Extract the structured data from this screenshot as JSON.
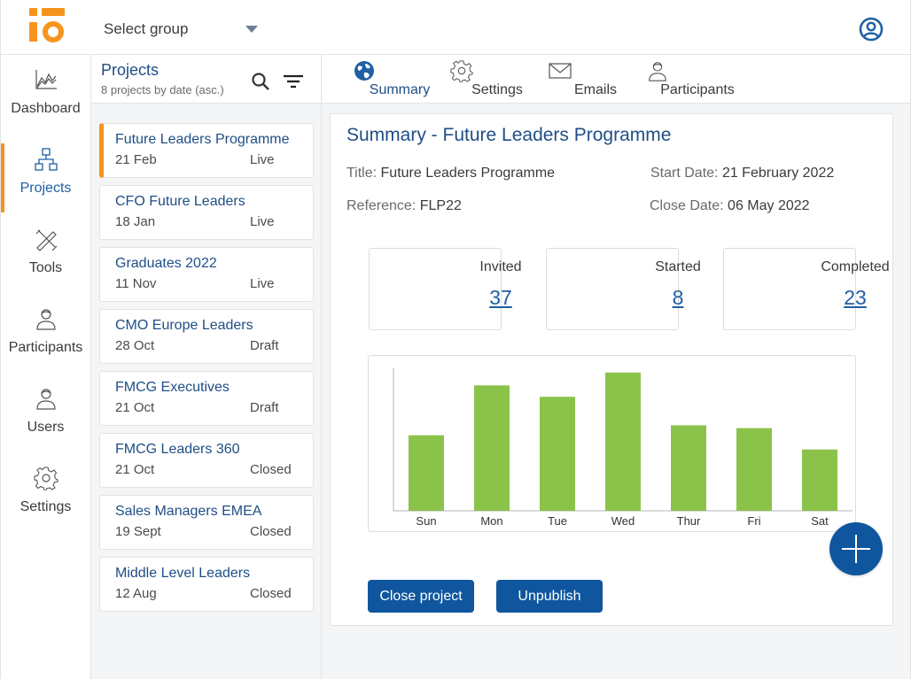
{
  "header": {
    "group_select_label": "Select group",
    "icons": [
      "logo",
      "chevron-down-icon",
      "account-icon"
    ]
  },
  "nav": {
    "items": [
      {
        "label": "Dashboard",
        "icon": "chart-icon"
      },
      {
        "label": "Projects",
        "icon": "hierarchy-icon",
        "active": true
      },
      {
        "label": "Tools",
        "icon": "tools-icon"
      },
      {
        "label": "Participants",
        "icon": "person-icon"
      },
      {
        "label": "Users",
        "icon": "person-icon"
      },
      {
        "label": "Settings",
        "icon": "gear-icon"
      }
    ]
  },
  "projects": {
    "title": "Projects",
    "subtitle": "8 projects by date (asc.)",
    "items": [
      {
        "name": "Future Leaders Programme",
        "date": "21 Feb",
        "status": "Live",
        "active": true
      },
      {
        "name": "CFO Future Leaders",
        "date": "18 Jan",
        "status": "Live"
      },
      {
        "name": "Graduates 2022",
        "date": "11 Nov",
        "status": "Live"
      },
      {
        "name": "CMO Europe Leaders",
        "date": "28 Oct",
        "status": "Draft"
      },
      {
        "name": "FMCG Executives",
        "date": "21 Oct",
        "status": "Draft"
      },
      {
        "name": "FMCG Leaders 360",
        "date": "21 Oct",
        "status": "Closed"
      },
      {
        "name": "Sales Managers EMEA",
        "date": "19 Sept",
        "status": "Closed"
      },
      {
        "name": "Middle Level Leaders",
        "date": "12 Aug",
        "status": "Closed"
      }
    ]
  },
  "tabs": [
    {
      "label": "Summary",
      "icon": "globe-icon",
      "active": true
    },
    {
      "label": "Settings",
      "icon": "gear-icon"
    },
    {
      "label": "Emails",
      "icon": "envelope-icon"
    },
    {
      "label": "Participants",
      "icon": "person-icon"
    }
  ],
  "summary": {
    "heading": "Summary - Future Leaders Programme",
    "title_label": "Title:",
    "title_value": "Future Leaders Programme",
    "reference_label": "Reference:",
    "reference_value": "FLP22",
    "start_label": "Start Date:",
    "start_value": "21 February 2022",
    "close_label": "Close Date:",
    "close_value": "06 May 2022",
    "stats": [
      {
        "label": "Invited",
        "value": "37"
      },
      {
        "label": "Started",
        "value": "8"
      },
      {
        "label": "Completed",
        "value": "23"
      }
    ],
    "close_button": "Close project",
    "unpublish_button": "Unpublish"
  },
  "chart_data": {
    "type": "bar",
    "categories": [
      "Sun",
      "Mon",
      "Tue",
      "Wed",
      "Thur",
      "Fri",
      "Sat"
    ],
    "values": [
      53,
      88,
      80,
      97,
      60,
      58,
      43
    ],
    "title": "",
    "xlabel": "",
    "ylabel": "",
    "ylim": [
      0,
      100
    ],
    "grid": false,
    "bar_color": "#8bc34a"
  },
  "colors": {
    "accent": "#f7941d",
    "primary": "#0f569e",
    "heading": "#1f4e86"
  }
}
